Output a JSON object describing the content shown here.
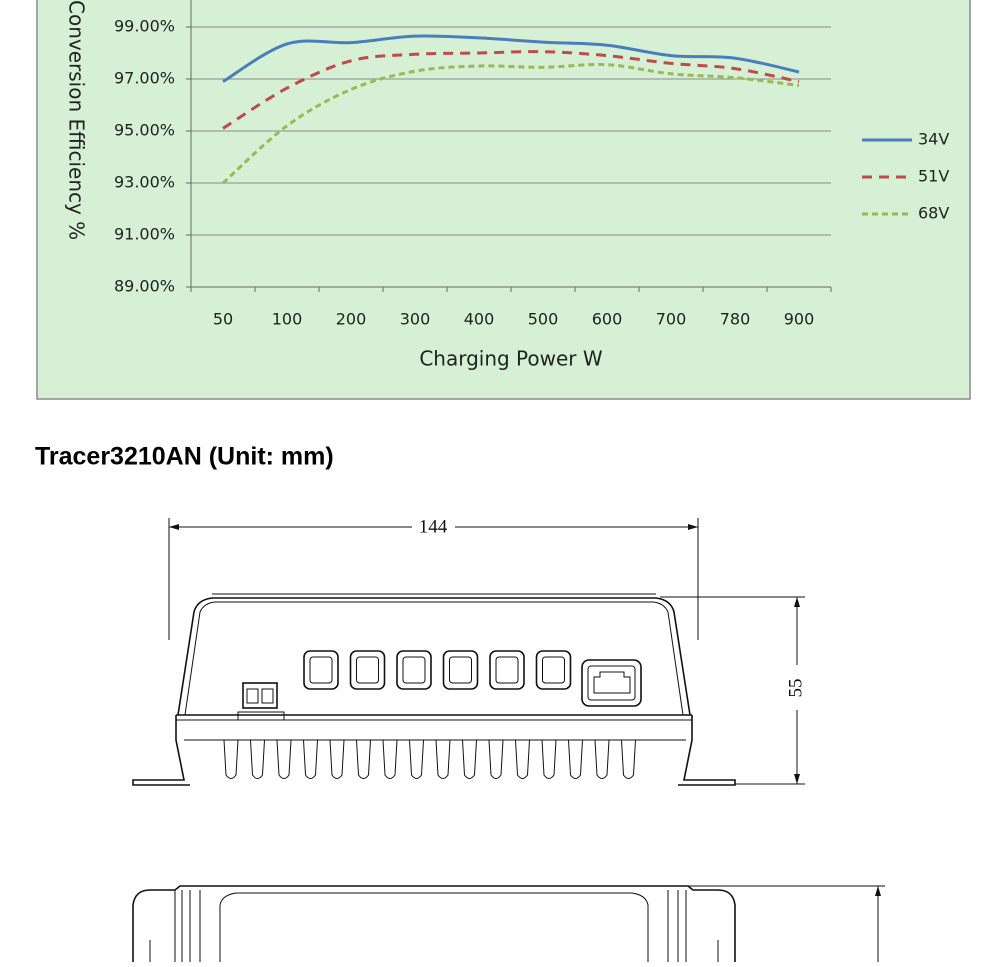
{
  "chart_data": {
    "type": "line",
    "x_label": "Charging Power W",
    "y_label": "Conversion Efficiency %",
    "categories": [
      "50",
      "100",
      "200",
      "300",
      "400",
      "500",
      "600",
      "700",
      "780",
      "900"
    ],
    "ylim": [
      89,
      100
    ],
    "yticks": [
      {
        "value": 89,
        "label": "89.00%"
      },
      {
        "value": 91,
        "label": "91.00%"
      },
      {
        "value": 93,
        "label": "93.00%"
      },
      {
        "value": 95,
        "label": "95.00%"
      },
      {
        "value": 97,
        "label": "97.00%"
      },
      {
        "value": 99,
        "label": "99.00%"
      }
    ],
    "grid": true,
    "legend": "right",
    "series": [
      {
        "name": "34V",
        "color": "#4a7ebb",
        "dash": "solid",
        "values": [
          96.9,
          98.35,
          98.4,
          98.65,
          98.58,
          98.42,
          98.3,
          97.9,
          97.8,
          97.27
        ]
      },
      {
        "name": "51V",
        "color": "#be4b48",
        "dash": "dashed",
        "values": [
          95.1,
          96.65,
          97.7,
          97.95,
          98.0,
          98.05,
          97.9,
          97.6,
          97.4,
          96.9
        ]
      },
      {
        "name": "68V",
        "color": "#98b954",
        "dash": "dotted",
        "values": [
          93.0,
          95.2,
          96.6,
          97.3,
          97.5,
          97.45,
          97.55,
          97.2,
          97.05,
          96.75
        ]
      }
    ]
  },
  "drawing": {
    "title": "Tracer3210AN (Unit: mm)",
    "width_label": 144,
    "height_label": 55
  }
}
